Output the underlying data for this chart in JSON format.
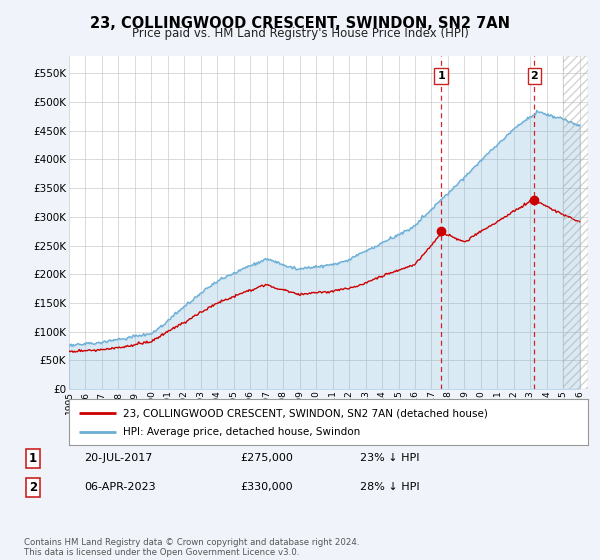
{
  "title": "23, COLLINGWOOD CRESCENT, SWINDON, SN2 7AN",
  "subtitle": "Price paid vs. HM Land Registry's House Price Index (HPI)",
  "legend_line1": "23, COLLINGWOOD CRESCENT, SWINDON, SN2 7AN (detached house)",
  "legend_line2": "HPI: Average price, detached house, Swindon",
  "annotation1_date": "20-JUL-2017",
  "annotation1_price": "£275,000",
  "annotation1_pct": "23% ↓ HPI",
  "annotation2_date": "06-APR-2023",
  "annotation2_price": "£330,000",
  "annotation2_pct": "28% ↓ HPI",
  "footer": "Contains HM Land Registry data © Crown copyright and database right 2024.\nThis data is licensed under the Open Government Licence v3.0.",
  "hpi_color": "#6baed6",
  "price_color": "#cc0000",
  "bg_color": "#f0f4fa",
  "plot_bg_color": "#ffffff",
  "fill_color": "#ddeeff",
  "yticks": [
    0,
    50000,
    100000,
    150000,
    200000,
    250000,
    300000,
    350000,
    400000,
    450000,
    500000,
    550000
  ],
  "ylim": [
    0,
    580000
  ],
  "xlim": [
    1995,
    2026.5
  ],
  "trans1_x": 2017.583,
  "trans1_y": 275000,
  "trans2_x": 2023.25,
  "trans2_y": 330000,
  "hpi_seed": 99,
  "price_seed": 77,
  "n_points": 500
}
